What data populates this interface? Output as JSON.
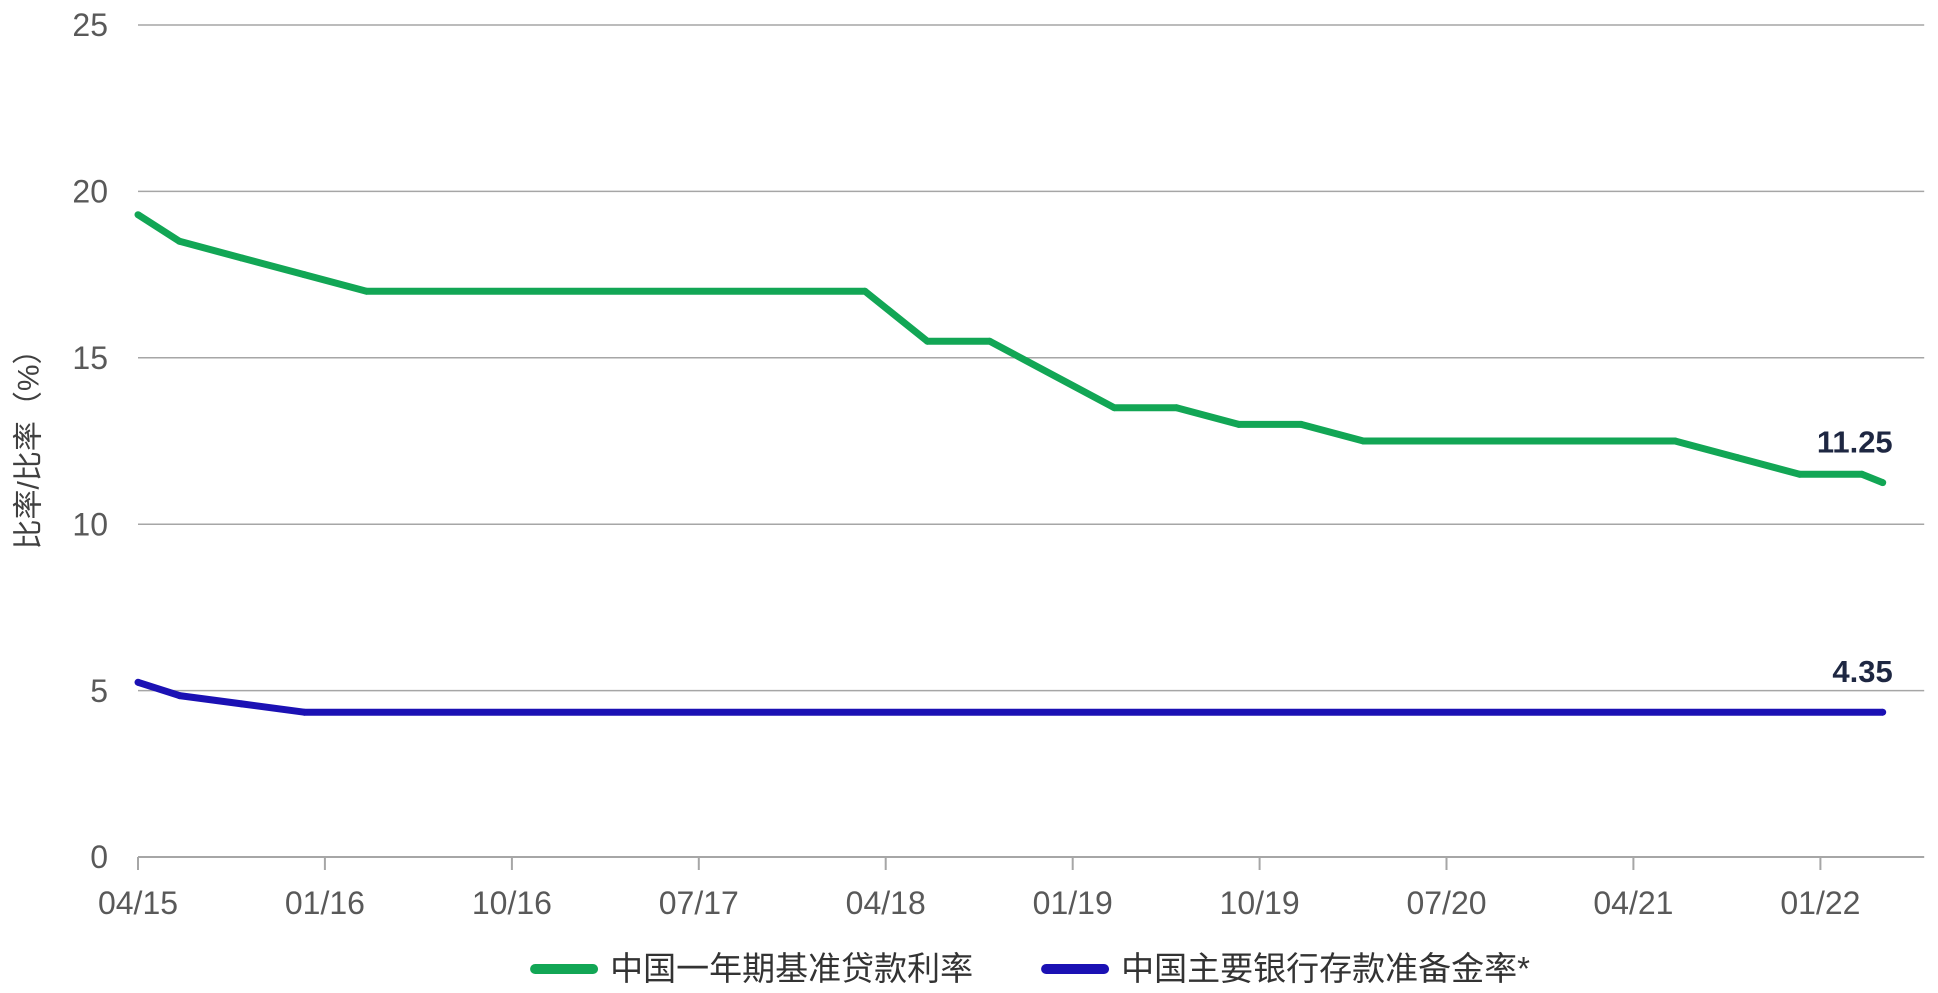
{
  "chart_data": {
    "type": "line",
    "ylabel": "比率/比率（%）",
    "ylim": [
      0,
      25
    ],
    "xlim": [
      "04/15",
      "06/22"
    ],
    "yticks": [
      0,
      5,
      10,
      15,
      20,
      25
    ],
    "xticks": [
      "04/15",
      "01/16",
      "10/16",
      "07/17",
      "04/18",
      "01/19",
      "10/19",
      "07/20",
      "04/21",
      "01/22"
    ],
    "grid": true,
    "legend": "bottom",
    "series": [
      {
        "name": "中国一年期基准贷款利率",
        "color": "#12a655",
        "points": [
          {
            "x": "04/15",
            "y": 19.3
          },
          {
            "x": "06/15",
            "y": 18.5
          },
          {
            "x": "09/15",
            "y": 18.0
          },
          {
            "x": "12/15",
            "y": 17.5
          },
          {
            "x": "03/16",
            "y": 17.0
          },
          {
            "x": "03/18",
            "y": 17.0
          },
          {
            "x": "06/18",
            "y": 15.5
          },
          {
            "x": "09/18",
            "y": 15.5
          },
          {
            "x": "03/19",
            "y": 13.5
          },
          {
            "x": "06/19",
            "y": 13.5
          },
          {
            "x": "09/19",
            "y": 13.0
          },
          {
            "x": "12/19",
            "y": 13.0
          },
          {
            "x": "03/20",
            "y": 12.5
          },
          {
            "x": "06/21",
            "y": 12.5
          },
          {
            "x": "09/21",
            "y": 12.0
          },
          {
            "x": "12/21",
            "y": 11.5
          },
          {
            "x": "03/22",
            "y": 11.5
          },
          {
            "x": "04/22",
            "y": 11.25
          }
        ],
        "end_label": "11.25"
      },
      {
        "name": "中国主要银行存款准备金率*",
        "color": "#1b11b4",
        "points": [
          {
            "x": "04/15",
            "y": 5.25
          },
          {
            "x": "06/15",
            "y": 4.85
          },
          {
            "x": "09/15",
            "y": 4.6
          },
          {
            "x": "12/15",
            "y": 4.35
          },
          {
            "x": "04/22",
            "y": 4.35
          }
        ],
        "end_label": "4.35"
      }
    ]
  }
}
